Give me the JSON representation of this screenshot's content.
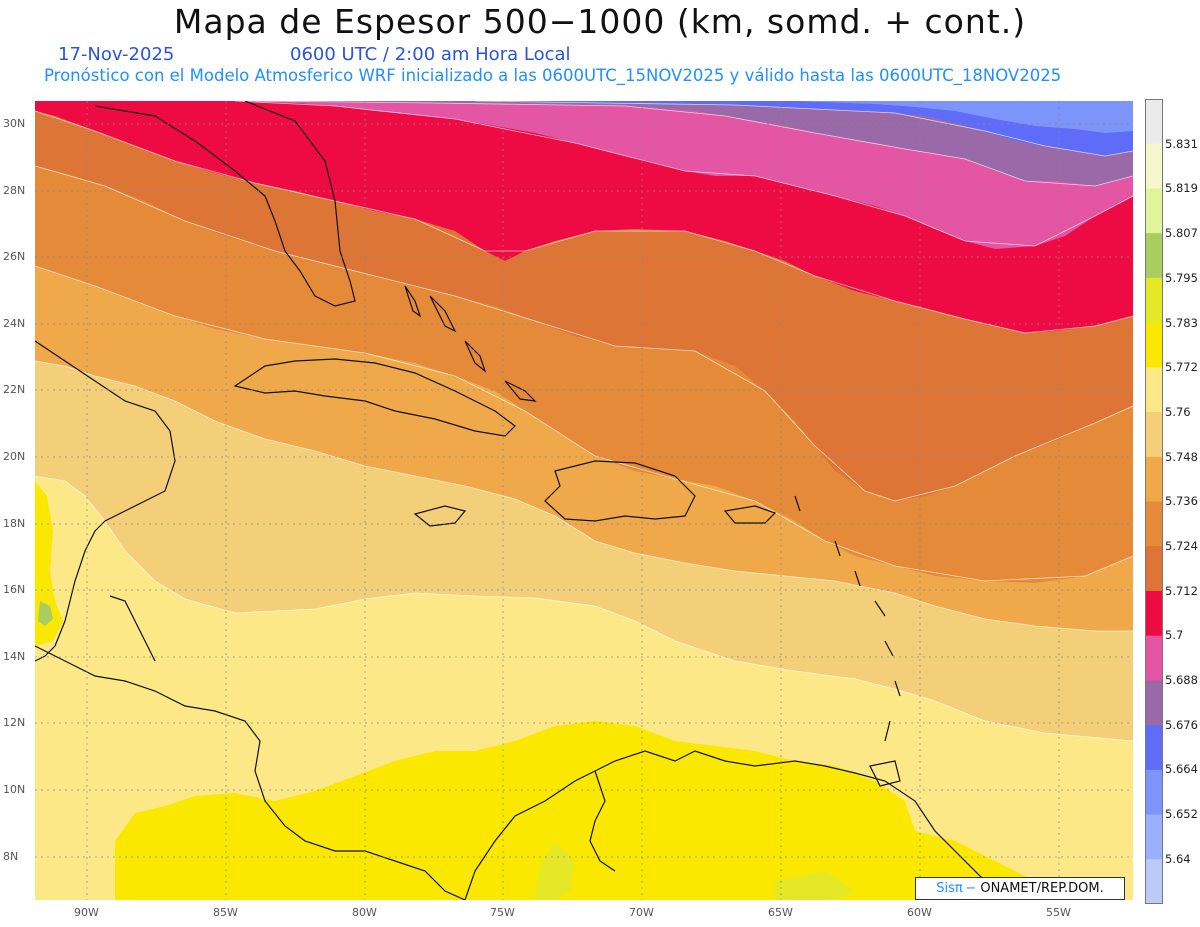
{
  "header": {
    "title": "Mapa de Espesor 500−1000 (km, somd. + cont.)",
    "date": "17-Nov-2025",
    "time": "0600 UTC / 2:00 am Hora Local",
    "subtitle": "Pronóstico con el Modelo Atmosferico WRF inicializado a las 0600UTC_15NOV2025 y válido hasta las  0600UTC_18NOV2025"
  },
  "map": {
    "lon_labels": [
      "90W",
      "85W",
      "80W",
      "75W",
      "70W",
      "65W",
      "60W",
      "55W"
    ],
    "lat_labels": [
      "30N",
      "28N",
      "26N",
      "24N",
      "22N",
      "20N",
      "18N",
      "16N",
      "14N",
      "12N",
      "10N",
      "8N"
    ],
    "lon_range": [
      -92,
      -52.5
    ],
    "lat_range": [
      6.8,
      30.7
    ],
    "grid": "dotted"
  },
  "legend": {
    "labels": [
      "5.831",
      "5.819",
      "5.807",
      "5.795",
      "5.783",
      "5.772",
      "5.76",
      "5.748",
      "5.736",
      "5.724",
      "5.712",
      "5.7",
      "5.688",
      "5.676",
      "5.664",
      "5.652",
      "5.64"
    ],
    "colors": [
      "#ebebeb",
      "#f4f8cc",
      "#e2f49a",
      "#aacd60",
      "#e4e826",
      "#fbe800",
      "#fde888",
      "#f4cf7a",
      "#efa94a",
      "#e58a38",
      "#dc7535",
      "#ee0b44",
      "#e455a4",
      "#9a6aa8",
      "#5e6cf8",
      "#7d95fa",
      "#9ab0fc",
      "#bccaf8"
    ]
  },
  "credit": {
    "part1": "Sisπ −",
    "part2": "ONAMET/REP.DOM."
  }
}
